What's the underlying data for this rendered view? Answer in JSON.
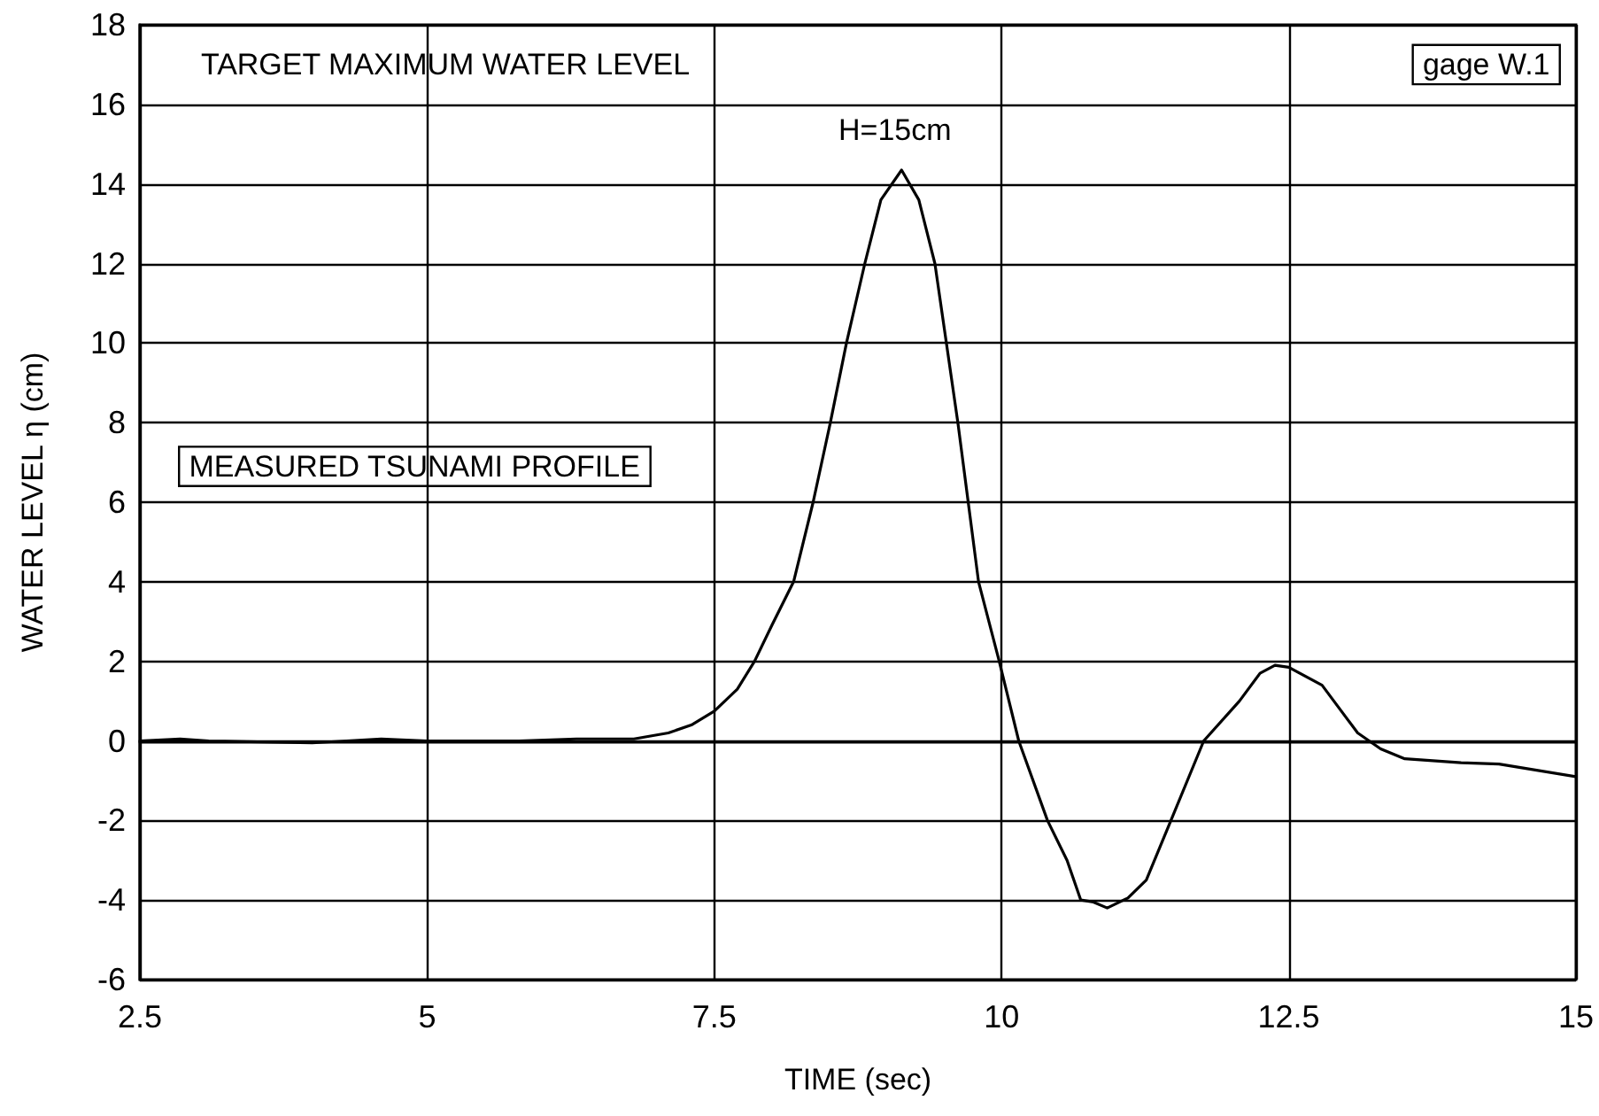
{
  "chart_data": {
    "type": "line",
    "xlabel": "TIME (sec)",
    "ylabel": "WATER LEVEL η (cm)",
    "x": [
      2.5,
      2.85,
      3.1,
      4,
      4.6,
      5,
      5.8,
      6.3,
      6.8,
      7.1,
      7.3,
      7.5,
      7.7,
      7.85,
      8.0,
      8.19,
      8.36,
      8.51,
      8.65,
      8.81,
      8.95,
      9.13,
      9.28,
      9.42,
      9.52,
      9.62,
      9.71,
      9.8,
      9.98,
      10.15,
      10.4,
      10.57,
      10.69,
      10.8,
      10.92,
      11.1,
      11.26,
      11.46,
      11.76,
      12.07,
      12.25,
      12.38,
      12.5,
      12.79,
      13.1,
      13.3,
      13.51,
      14,
      14.33,
      15
    ],
    "series": [
      {
        "color": "#000000",
        "values": [
          0,
          0.05,
          0,
          -0.05,
          0.05,
          0,
          0,
          0.05,
          0.05,
          0.2,
          0.4,
          0.75,
          1.3,
          2,
          2.9,
          4,
          6,
          8,
          10,
          12,
          13.6,
          14.35,
          13.6,
          12,
          10,
          8,
          6,
          4,
          2,
          0,
          -2,
          -3,
          -4,
          -4.05,
          -4.2,
          -3.95,
          -3.5,
          -2.1,
          0,
          1,
          1.7,
          1.9,
          1.85,
          1.4,
          0.2,
          -0.2,
          -0.45,
          -0.55,
          -0.58,
          -0.9
        ]
      }
    ],
    "xlim": [
      2.5,
      15
    ],
    "xticks": [
      2.5,
      5,
      7.5,
      10,
      12.5,
      15
    ],
    "ylim": [
      -6,
      18
    ],
    "yticks": [
      -6,
      -4,
      -2,
      0,
      2,
      4,
      6,
      8,
      10,
      12,
      14,
      16,
      18
    ],
    "annotations": [
      "TARGET MAXIMUM WATER LEVEL",
      "H=15cm",
      "MEASURED TSUNAMI PROFILE",
      "gage W.1"
    ],
    "grid": true,
    "marker": "none",
    "line_style": "solid"
  }
}
